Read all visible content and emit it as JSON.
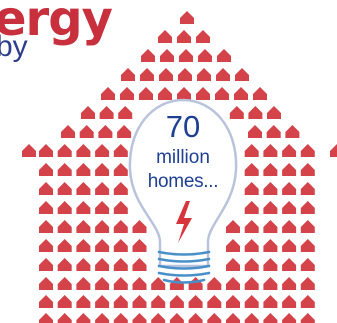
{
  "headline": "ergy",
  "subline": "by",
  "bulb": {
    "number": "70",
    "unit": "million",
    "label": "homes..."
  },
  "colors": {
    "house_red": "#d4434a",
    "headline_red": "#c8303d",
    "text_blue": "#1f3f93",
    "bulb_outline": "#b9c3dc",
    "coil_blue": "#4a90c8",
    "bolt_red": "#d8343c"
  },
  "icons": [
    "house-icon",
    "lightbulb-icon",
    "lightning-bolt-icon"
  ]
}
